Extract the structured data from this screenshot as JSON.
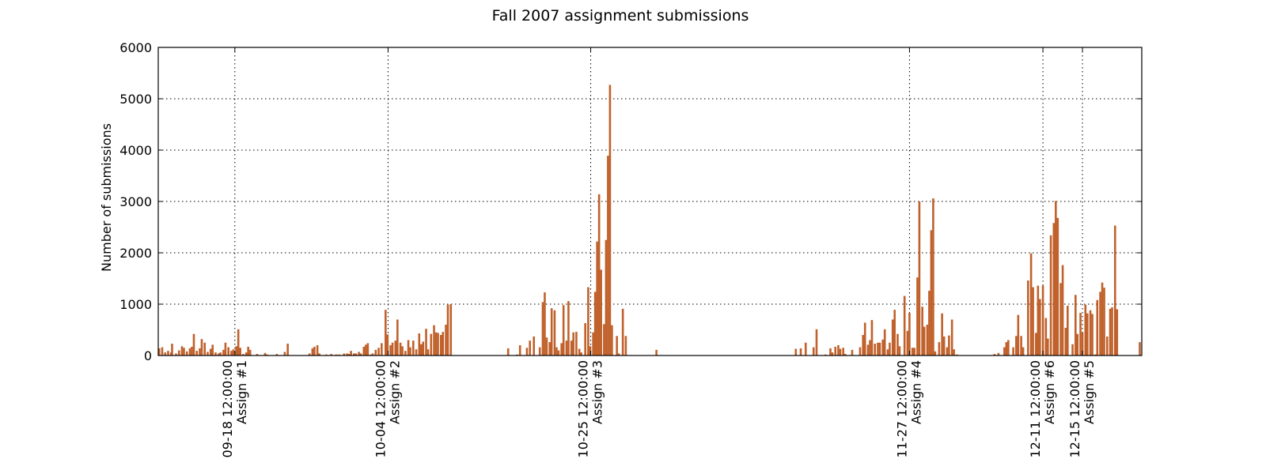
{
  "chart_data": {
    "type": "bar",
    "title": "Fall 2007 assignment submissions",
    "ylabel": "Number of submissions",
    "xlabel": "",
    "ylim": [
      0,
      6000
    ],
    "yticks": [
      0,
      1000,
      2000,
      3000,
      4000,
      5000,
      6000
    ],
    "grid": true,
    "bar_color": "#c0612b",
    "x_unit": "day-of-semester (0 = left edge of axis, ~09-11)",
    "xlim": [
      0,
      96
    ],
    "deadline_ticks": [
      {
        "x": 7.75,
        "date": "09-18 12:00:00",
        "label": "Assign #1"
      },
      {
        "x": 23.25,
        "date": "10-04 12:00:00",
        "label": "Assign #2"
      },
      {
        "x": 43.75,
        "date": "10-25 12:00:00",
        "label": "Assign #3"
      },
      {
        "x": 76.0,
        "date": "11-27 12:00:00",
        "label": "Assign #4"
      },
      {
        "x": 89.5,
        "date": "12-11 12:00:00",
        "label": "Assign #6"
      },
      {
        "x": 93.5,
        "date": "12-15 12:00:00",
        "label": "Assign #5"
      }
    ],
    "bars": [
      [
        0.1,
        140
      ],
      [
        0.4,
        160
      ],
      [
        0.7,
        60
      ],
      [
        1.0,
        90
      ],
      [
        1.3,
        60
      ],
      [
        1.4,
        230
      ],
      [
        1.8,
        40
      ],
      [
        2.1,
        100
      ],
      [
        2.4,
        180
      ],
      [
        2.6,
        150
      ],
      [
        2.9,
        80
      ],
      [
        3.2,
        140
      ],
      [
        3.4,
        170
      ],
      [
        3.6,
        420
      ],
      [
        3.9,
        90
      ],
      [
        4.2,
        140
      ],
      [
        4.4,
        320
      ],
      [
        4.7,
        250
      ],
      [
        5.0,
        70
      ],
      [
        5.3,
        130
      ],
      [
        5.5,
        210
      ],
      [
        5.8,
        60
      ],
      [
        6.1,
        40
      ],
      [
        6.3,
        60
      ],
      [
        6.6,
        110
      ],
      [
        6.8,
        250
      ],
      [
        7.1,
        160
      ],
      [
        7.4,
        90
      ],
      [
        7.6,
        120
      ],
      [
        7.9,
        180
      ],
      [
        8.1,
        510
      ],
      [
        8.3,
        150
      ],
      [
        8.6,
        30
      ],
      [
        8.9,
        60
      ],
      [
        9.1,
        170
      ],
      [
        9.3,
        110
      ],
      [
        10.0,
        30
      ],
      [
        10.8,
        50
      ],
      [
        11.0,
        20
      ],
      [
        12.0,
        30
      ],
      [
        12.8,
        70
      ],
      [
        13.1,
        230
      ],
      [
        15.3,
        40
      ],
      [
        15.6,
        140
      ],
      [
        15.8,
        170
      ],
      [
        16.1,
        200
      ],
      [
        16.3,
        40
      ],
      [
        17.0,
        20
      ],
      [
        17.5,
        30
      ],
      [
        18.0,
        20
      ],
      [
        18.3,
        20
      ],
      [
        18.8,
        40
      ],
      [
        19.1,
        40
      ],
      [
        19.3,
        30
      ],
      [
        19.5,
        90
      ],
      [
        19.8,
        40
      ],
      [
        20.0,
        40
      ],
      [
        20.3,
        70
      ],
      [
        20.5,
        40
      ],
      [
        20.8,
        170
      ],
      [
        21.0,
        210
      ],
      [
        21.2,
        240
      ],
      [
        21.5,
        20
      ],
      [
        21.7,
        40
      ],
      [
        22.0,
        110
      ],
      [
        22.3,
        150
      ],
      [
        22.6,
        240
      ],
      [
        23.0,
        890
      ],
      [
        23.2,
        410
      ],
      [
        23.5,
        200
      ],
      [
        23.7,
        250
      ],
      [
        24.0,
        290
      ],
      [
        24.2,
        700
      ],
      [
        24.5,
        250
      ],
      [
        24.7,
        180
      ],
      [
        25.0,
        90
      ],
      [
        25.3,
        300
      ],
      [
        25.5,
        160
      ],
      [
        25.8,
        290
      ],
      [
        26.1,
        120
      ],
      [
        26.4,
        430
      ],
      [
        26.6,
        220
      ],
      [
        26.8,
        270
      ],
      [
        27.1,
        520
      ],
      [
        27.3,
        120
      ],
      [
        27.6,
        420
      ],
      [
        27.9,
        590
      ],
      [
        28.1,
        450
      ],
      [
        28.3,
        440
      ],
      [
        28.6,
        400
      ],
      [
        28.8,
        460
      ],
      [
        29.1,
        600
      ],
      [
        29.3,
        990
      ],
      [
        29.6,
        1000
      ],
      [
        35.4,
        140
      ],
      [
        36.3,
        20
      ],
      [
        36.6,
        200
      ],
      [
        37.3,
        150
      ],
      [
        37.6,
        290
      ],
      [
        38.0,
        370
      ],
      [
        38.6,
        160
      ],
      [
        38.9,
        1040
      ],
      [
        39.1,
        1230
      ],
      [
        39.3,
        350
      ],
      [
        39.6,
        260
      ],
      [
        39.8,
        920
      ],
      [
        40.1,
        880
      ],
      [
        40.3,
        160
      ],
      [
        40.5,
        100
      ],
      [
        40.8,
        240
      ],
      [
        41.0,
        980
      ],
      [
        41.3,
        290
      ],
      [
        41.5,
        1060
      ],
      [
        41.8,
        290
      ],
      [
        42.0,
        450
      ],
      [
        42.3,
        460
      ],
      [
        42.6,
        130
      ],
      [
        42.8,
        60
      ],
      [
        43.2,
        630
      ],
      [
        43.5,
        1330
      ],
      [
        43.7,
        180
      ],
      [
        44.0,
        450
      ],
      [
        44.2,
        1240
      ],
      [
        44.4,
        2220
      ],
      [
        44.6,
        3140
      ],
      [
        44.8,
        1670
      ],
      [
        45.1,
        610
      ],
      [
        45.3,
        2250
      ],
      [
        45.5,
        3890
      ],
      [
        45.7,
        5270
      ],
      [
        45.9,
        590
      ],
      [
        46.4,
        380
      ],
      [
        46.6,
        40
      ],
      [
        47.0,
        910
      ],
      [
        47.3,
        380
      ],
      [
        50.4,
        110
      ],
      [
        64.5,
        130
      ],
      [
        65.0,
        140
      ],
      [
        65.5,
        250
      ],
      [
        66.3,
        160
      ],
      [
        66.6,
        510
      ],
      [
        67.5,
        20
      ],
      [
        68.0,
        140
      ],
      [
        68.2,
        60
      ],
      [
        68.5,
        170
      ],
      [
        68.8,
        200
      ],
      [
        69.0,
        130
      ],
      [
        69.3,
        150
      ],
      [
        69.5,
        30
      ],
      [
        70.2,
        110
      ],
      [
        71.0,
        160
      ],
      [
        71.3,
        400
      ],
      [
        71.5,
        640
      ],
      [
        71.8,
        210
      ],
      [
        72.0,
        300
      ],
      [
        72.2,
        690
      ],
      [
        72.5,
        230
      ],
      [
        72.8,
        250
      ],
      [
        73.0,
        250
      ],
      [
        73.3,
        310
      ],
      [
        73.5,
        510
      ],
      [
        73.8,
        120
      ],
      [
        74.0,
        250
      ],
      [
        74.3,
        700
      ],
      [
        74.5,
        890
      ],
      [
        74.8,
        420
      ],
      [
        75.0,
        180
      ],
      [
        75.5,
        1160
      ],
      [
        75.8,
        480
      ],
      [
        76.0,
        830
      ],
      [
        76.3,
        150
      ],
      [
        76.5,
        150
      ],
      [
        76.8,
        1520
      ],
      [
        77.0,
        3000
      ],
      [
        77.3,
        950
      ],
      [
        77.5,
        560
      ],
      [
        77.8,
        600
      ],
      [
        78.0,
        1260
      ],
      [
        78.2,
        2440
      ],
      [
        78.4,
        3060
      ],
      [
        78.6,
        80
      ],
      [
        79.0,
        260
      ],
      [
        79.3,
        820
      ],
      [
        79.5,
        370
      ],
      [
        79.8,
        160
      ],
      [
        80.0,
        390
      ],
      [
        80.3,
        700
      ],
      [
        80.5,
        120
      ],
      [
        80.8,
        20
      ],
      [
        84.6,
        30
      ],
      [
        85.0,
        50
      ],
      [
        85.6,
        160
      ],
      [
        85.8,
        260
      ],
      [
        86.0,
        300
      ],
      [
        86.5,
        160
      ],
      [
        86.8,
        380
      ],
      [
        87.0,
        790
      ],
      [
        87.3,
        380
      ],
      [
        87.5,
        160
      ],
      [
        88.0,
        1460
      ],
      [
        88.3,
        1990
      ],
      [
        88.5,
        1330
      ],
      [
        88.8,
        440
      ],
      [
        89.0,
        1360
      ],
      [
        89.2,
        1100
      ],
      [
        89.5,
        1360
      ],
      [
        89.8,
        730
      ],
      [
        90.0,
        330
      ],
      [
        90.3,
        2340
      ],
      [
        90.6,
        2580
      ],
      [
        90.8,
        3010
      ],
      [
        91.0,
        2680
      ],
      [
        91.3,
        1410
      ],
      [
        91.5,
        1760
      ],
      [
        91.8,
        540
      ],
      [
        92.0,
        970
      ],
      [
        92.5,
        220
      ],
      [
        92.8,
        1180
      ],
      [
        93.0,
        420
      ],
      [
        93.3,
        830
      ],
      [
        93.5,
        450
      ],
      [
        93.8,
        990
      ],
      [
        94.0,
        820
      ],
      [
        94.3,
        880
      ],
      [
        94.5,
        810
      ],
      [
        94.8,
        20
      ],
      [
        95.0,
        1080
      ],
      [
        95.3,
        1240
      ],
      [
        95.5,
        1420
      ],
      [
        95.7,
        1320
      ],
      [
        96.0,
        370
      ],
      [
        96.3,
        910
      ],
      [
        96.5,
        940
      ],
      [
        96.8,
        2530
      ],
      [
        97.0,
        900
      ],
      [
        99.3,
        260
      ]
    ]
  }
}
